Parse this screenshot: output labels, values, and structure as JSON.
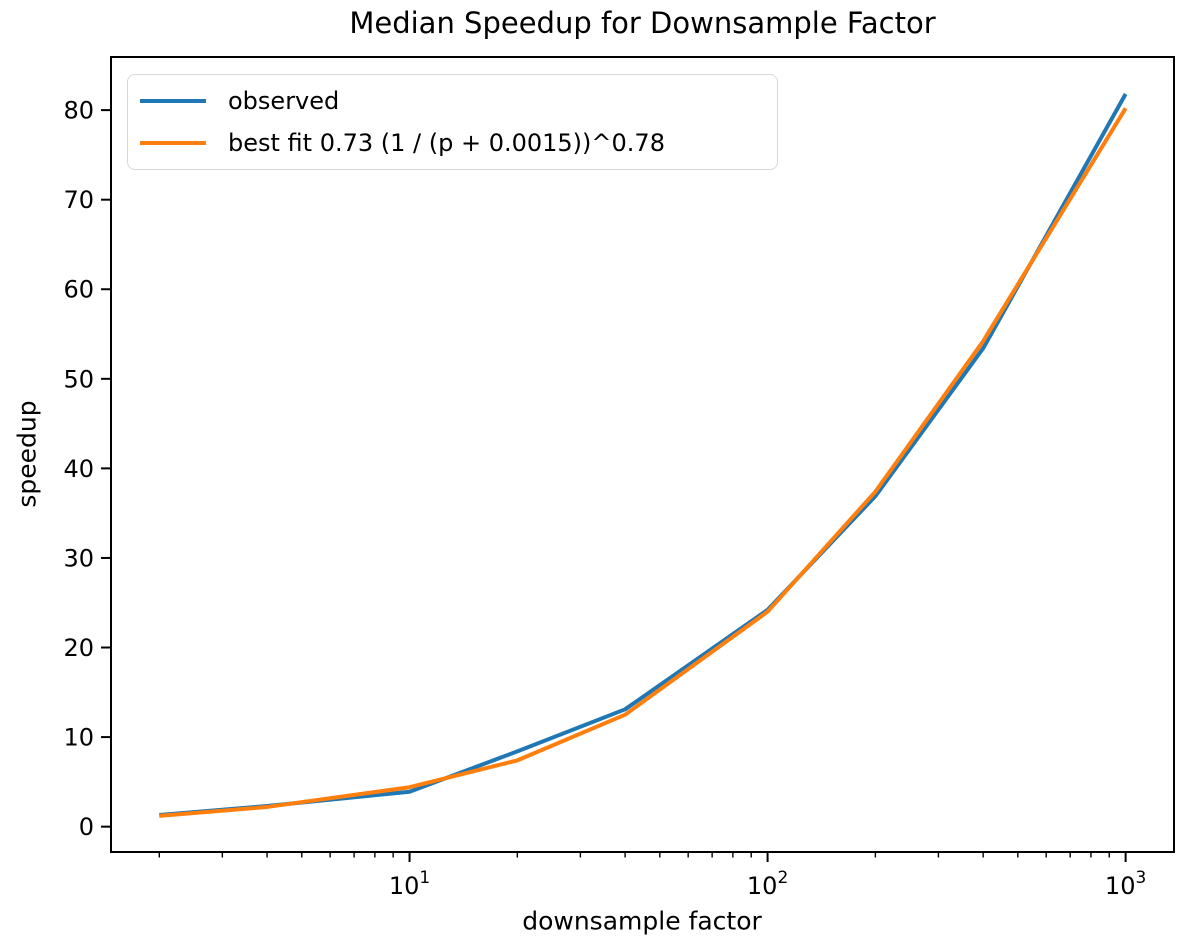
{
  "chart_data": {
    "type": "line",
    "title": "Median Speedup for Downsample Factor",
    "xlabel": "downsample factor",
    "ylabel": "speedup",
    "x_scale": "log",
    "y_scale": "linear",
    "grid": false,
    "legend_position": "upper left",
    "xlim": [
      1.466,
      1365
    ],
    "ylim": [
      -2.83,
      85.93
    ],
    "x": [
      2,
      4,
      10,
      20,
      40,
      100,
      200,
      400,
      1000
    ],
    "series": [
      {
        "name": "observed",
        "color": "#1f77b4",
        "values": [
          1.3,
          2.3,
          3.9,
          8.4,
          13.1,
          24.2,
          36.9,
          53.4,
          81.8
        ]
      },
      {
        "name": "best fit 0.73 (1 / (p + 0.0015))^0.78",
        "color": "#ff7f0e",
        "values": [
          1.2,
          2.2,
          4.4,
          7.4,
          12.5,
          24.0,
          37.4,
          54.2,
          80.2
        ]
      }
    ],
    "x_major_ticks": [
      {
        "value": 10,
        "label": "10^1"
      },
      {
        "value": 100,
        "label": "10^2"
      },
      {
        "value": 1000,
        "label": "10^3"
      }
    ],
    "x_minor_ticks": [
      2,
      3,
      4,
      5,
      6,
      7,
      8,
      9,
      20,
      30,
      40,
      50,
      60,
      70,
      80,
      90,
      200,
      300,
      400,
      500,
      600,
      700,
      800,
      900
    ],
    "y_ticks": [
      0,
      10,
      20,
      30,
      40,
      50,
      60,
      70,
      80
    ]
  }
}
